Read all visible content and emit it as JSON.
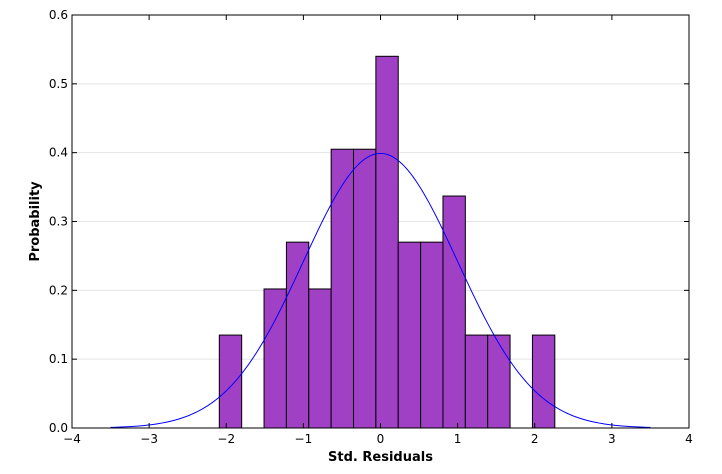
{
  "chart_data": {
    "type": "bar",
    "title": "",
    "xlabel": "Std. Residuals",
    "ylabel": "Probability",
    "xlim": [
      -4,
      4
    ],
    "ylim": [
      0,
      0.6
    ],
    "xticks": [
      -4,
      -3,
      -2,
      -1,
      0,
      1,
      2,
      3,
      4
    ],
    "xtick_labels": [
      "−4",
      "−3",
      "−2",
      "−1",
      "0",
      "1",
      "2",
      "3",
      "4"
    ],
    "yticks": [
      0.0,
      0.1,
      0.2,
      0.3,
      0.4,
      0.5,
      0.6
    ],
    "ytick_labels": [
      "0.0",
      "0.1",
      "0.2",
      "0.3",
      "0.4",
      "0.5",
      "0.6"
    ],
    "grid": true,
    "bar_color": "#a040c4",
    "bar_edge_color": "#000000",
    "curve_color": "#0000ff",
    "histogram": {
      "bin_width": 0.29,
      "bins": [
        {
          "x0": -2.09,
          "x1": -1.8,
          "density": 0.135
        },
        {
          "x0": -1.51,
          "x1": -1.22,
          "density": 0.202
        },
        {
          "x0": -1.22,
          "x1": -0.93,
          "density": 0.27
        },
        {
          "x0": -0.93,
          "x1": -0.64,
          "density": 0.202
        },
        {
          "x0": -0.64,
          "x1": -0.35,
          "density": 0.405
        },
        {
          "x0": -0.35,
          "x1": -0.06,
          "density": 0.405
        },
        {
          "x0": -0.06,
          "x1": 0.23,
          "density": 0.54
        },
        {
          "x0": 0.23,
          "x1": 0.52,
          "density": 0.27
        },
        {
          "x0": 0.52,
          "x1": 0.81,
          "density": 0.27
        },
        {
          "x0": 0.81,
          "x1": 1.1,
          "density": 0.337
        },
        {
          "x0": 1.1,
          "x1": 1.39,
          "density": 0.135
        },
        {
          "x0": 1.39,
          "x1": 1.68,
          "density": 0.135
        },
        {
          "x0": 1.97,
          "x1": 2.26,
          "density": 0.135
        }
      ]
    },
    "normal_curve": {
      "mean": 0,
      "std": 1,
      "x_range": [
        -3.5,
        3.5
      ]
    }
  }
}
